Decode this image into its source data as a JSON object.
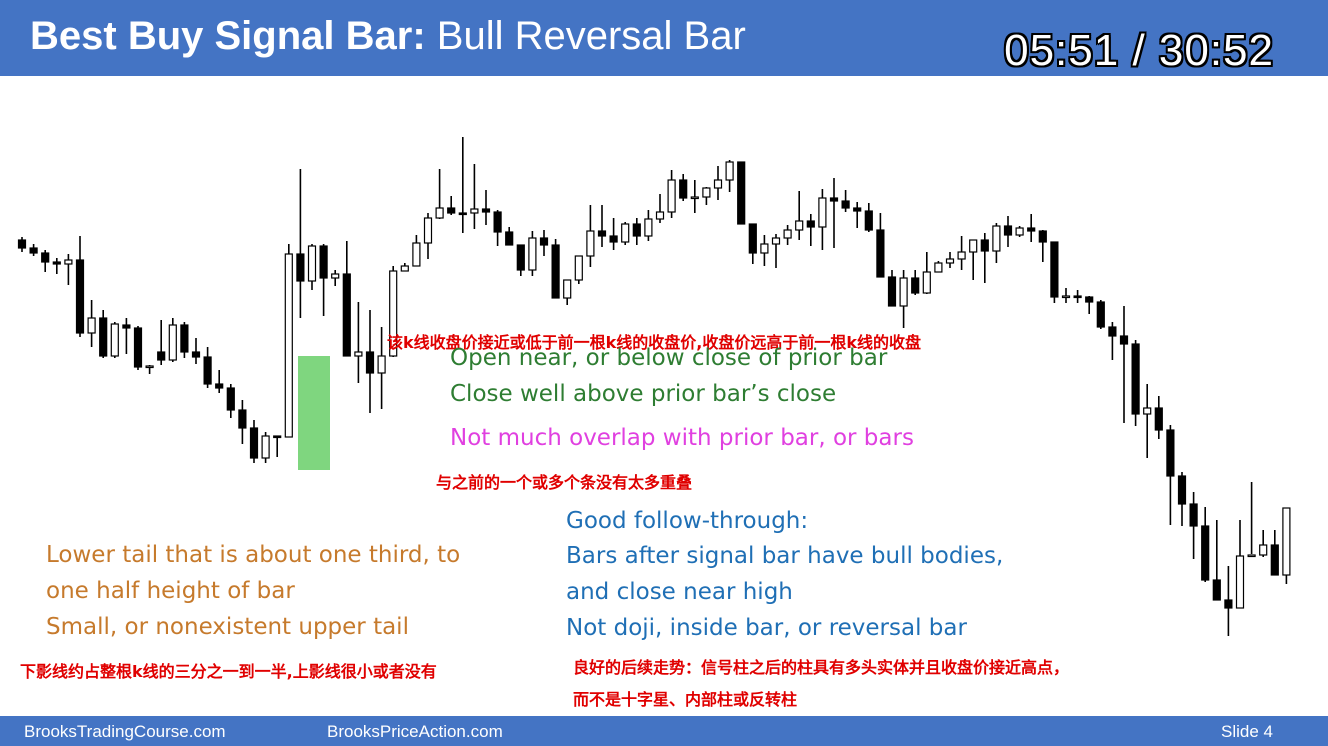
{
  "header": {
    "title_bold": "Best Buy Signal Bar:",
    "title_rest": " Bull Reversal Bar",
    "timer": "05:51 / 30:52",
    "bg_color": "#4474c4"
  },
  "annotations": {
    "cn_open_close": "该k线收盘价接近或低于前一根k线的收盘价,收盘价远高于前一根k线的收盘",
    "open_near": "Open near, or below close of prior bar",
    "close_well": "Close well above prior bar’s close",
    "overlap": "Not much overlap with prior bar, or bars",
    "cn_overlap": "与之前的一个或多个条没有太多重叠",
    "lower_tail_1": "Lower tail that is about one third, to",
    "lower_tail_2": "one half height of bar",
    "upper_tail": "Small, or nonexistent upper tail",
    "cn_tail": "下影线约占整根k线的三分之一到一半,上影线很小或者没有",
    "follow_1": "Good follow-through:",
    "follow_2": "Bars after signal bar have bull bodies,",
    "follow_3": "and close near high",
    "follow_4": "Not doji, inside bar, or reversal bar",
    "cn_follow_1": "良好的后续走势：信号柱之后的柱具有多头实体并且收盘价接近高点，",
    "cn_follow_2": "而不是十字星、内部柱或反转柱"
  },
  "footer": {
    "left": "BrooksTradingCourse.com",
    "middle": "BrooksPriceAction.com",
    "slide": "Slide  4"
  },
  "chart_data": {
    "type": "candlestick",
    "title": "",
    "highlight_bar_index": 25,
    "highlight_color": "#7fd67f",
    "bull_color": "#ffffff",
    "bear_color": "#000000",
    "ohlc": [
      [
        240,
        237,
        252,
        248
      ],
      [
        248,
        244,
        256,
        253
      ],
      [
        253,
        250,
        272,
        262
      ],
      [
        262,
        258,
        274,
        264
      ],
      [
        264,
        254,
        285,
        260
      ],
      [
        260,
        236,
        337,
        333
      ],
      [
        333,
        300,
        347,
        318
      ],
      [
        318,
        310,
        358,
        356
      ],
      [
        356,
        322,
        358,
        324
      ],
      [
        325,
        318,
        354,
        328
      ],
      [
        328,
        326,
        370,
        367
      ],
      [
        367,
        365,
        374,
        366
      ],
      [
        352,
        320,
        365,
        360
      ],
      [
        360,
        318,
        362,
        325
      ],
      [
        325,
        322,
        358,
        352
      ],
      [
        352,
        338,
        364,
        357
      ],
      [
        357,
        347,
        388,
        384
      ],
      [
        384,
        370,
        393,
        388
      ],
      [
        388,
        384,
        418,
        410
      ],
      [
        410,
        400,
        444,
        428
      ],
      [
        428,
        420,
        463,
        458
      ],
      [
        458,
        432,
        463,
        436
      ],
      [
        436,
        436,
        457,
        437
      ],
      [
        437,
        244,
        437,
        254
      ],
      [
        254,
        169,
        318,
        281
      ],
      [
        281,
        244,
        290,
        246
      ],
      [
        246,
        244,
        316,
        278
      ],
      [
        278,
        270,
        286,
        274
      ],
      [
        274,
        241,
        309,
        356
      ],
      [
        356,
        302,
        383,
        352
      ],
      [
        352,
        310,
        413,
        373
      ],
      [
        373,
        327,
        409,
        356
      ],
      [
        356,
        266,
        357,
        271
      ],
      [
        271,
        263,
        271,
        266
      ],
      [
        266,
        235,
        266,
        243
      ],
      [
        243,
        213,
        259,
        218
      ],
      [
        218,
        169,
        219,
        208
      ],
      [
        208,
        196,
        215,
        213
      ],
      [
        213,
        137,
        233,
        213
      ],
      [
        213,
        164,
        229,
        209
      ],
      [
        209,
        190,
        225,
        212
      ],
      [
        212,
        210,
        246,
        232
      ],
      [
        232,
        227,
        234,
        245
      ],
      [
        245,
        245,
        276,
        270
      ],
      [
        270,
        231,
        276,
        238
      ],
      [
        238,
        230,
        256,
        245
      ],
      [
        245,
        239,
        262,
        298
      ],
      [
        298,
        280,
        305,
        280
      ],
      [
        280,
        256,
        284,
        256
      ],
      [
        256,
        205,
        267,
        231
      ],
      [
        231,
        205,
        247,
        236
      ],
      [
        236,
        218,
        250,
        242
      ],
      [
        242,
        222,
        245,
        224
      ],
      [
        224,
        218,
        245,
        236
      ],
      [
        236,
        210,
        241,
        219
      ],
      [
        219,
        194,
        223,
        212
      ],
      [
        212,
        170,
        218,
        180
      ],
      [
        180,
        174,
        201,
        198
      ],
      [
        198,
        180,
        213,
        197
      ],
      [
        197,
        187,
        205,
        188
      ],
      [
        188,
        166,
        200,
        180
      ],
      [
        180,
        160,
        192,
        162
      ],
      [
        162,
        162,
        200,
        224
      ],
      [
        224,
        228,
        264,
        253
      ],
      [
        253,
        235,
        266,
        244
      ],
      [
        244,
        234,
        268,
        238
      ],
      [
        238,
        225,
        245,
        230
      ],
      [
        230,
        191,
        240,
        221
      ],
      [
        221,
        214,
        246,
        227
      ],
      [
        227,
        189,
        250,
        198
      ],
      [
        198,
        178,
        248,
        201
      ],
      [
        201,
        190,
        212,
        208
      ],
      [
        208,
        202,
        228,
        211
      ],
      [
        211,
        203,
        232,
        230
      ],
      [
        230,
        213,
        238,
        277
      ],
      [
        277,
        270,
        305,
        306
      ],
      [
        306,
        270,
        328,
        278
      ],
      [
        278,
        270,
        295,
        293
      ],
      [
        293,
        252,
        294,
        272
      ],
      [
        272,
        261,
        271,
        263
      ],
      [
        263,
        252,
        268,
        259
      ],
      [
        259,
        236,
        270,
        252
      ],
      [
        252,
        245,
        280,
        240
      ],
      [
        240,
        233,
        283,
        251
      ],
      [
        251,
        223,
        263,
        226
      ],
      [
        226,
        216,
        247,
        235
      ],
      [
        235,
        226,
        237,
        228
      ],
      [
        228,
        214,
        242,
        231
      ],
      [
        231,
        230,
        262,
        242
      ],
      [
        242,
        256,
        303,
        297
      ],
      [
        297,
        288,
        303,
        296
      ],
      [
        296,
        290,
        303,
        297
      ],
      [
        297,
        296,
        314,
        302
      ],
      [
        302,
        300,
        329,
        327
      ],
      [
        327,
        322,
        360,
        336
      ],
      [
        336,
        306,
        423,
        344
      ],
      [
        344,
        340,
        426,
        414
      ],
      [
        414,
        384,
        458,
        408
      ],
      [
        408,
        396,
        439,
        430
      ],
      [
        430,
        425,
        525,
        476
      ],
      [
        476,
        472,
        526,
        504
      ],
      [
        504,
        492,
        559,
        526
      ],
      [
        526,
        507,
        582,
        580
      ],
      [
        580,
        520,
        596,
        600
      ],
      [
        600,
        566,
        636,
        608
      ],
      [
        608,
        520,
        606,
        556
      ],
      [
        556,
        482,
        554,
        555
      ],
      [
        555,
        530,
        557,
        545
      ],
      [
        545,
        530,
        560,
        575
      ],
      [
        575,
        528,
        584,
        508
      ]
    ],
    "price_range": [
      130,
      640
    ]
  }
}
